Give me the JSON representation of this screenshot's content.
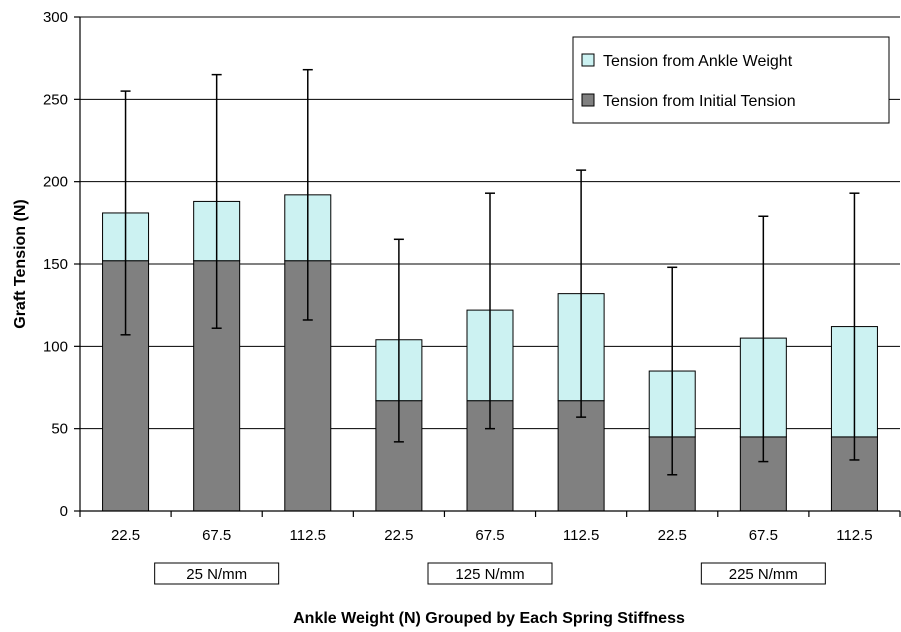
{
  "chart_data": {
    "type": "bar",
    "stacked": true,
    "title": "",
    "xlabel": "Ankle Weight (N) Grouped by Each Spring Stiffness",
    "ylabel": "Graft Tension (N)",
    "ylim": [
      0,
      300
    ],
    "yticks": [
      "0",
      "50",
      "100",
      "150",
      "200",
      "250",
      "300"
    ],
    "grid": true,
    "legend_position": "top-right",
    "categories": [
      "22.5",
      "67.5",
      "112.5",
      "22.5",
      "67.5",
      "112.5",
      "22.5",
      "67.5",
      "112.5"
    ],
    "groups": [
      {
        "label": "25 N/mm",
        "categories": [
          0,
          1,
          2
        ]
      },
      {
        "label": "125 N/mm",
        "categories": [
          3,
          4,
          5
        ]
      },
      {
        "label": "225 N/mm",
        "categories": [
          6,
          7,
          8
        ]
      }
    ],
    "series": [
      {
        "name": "Tension from Initial Tension",
        "color": "#808080",
        "values": [
          152,
          152,
          152,
          67,
          67,
          67,
          45,
          45,
          45
        ]
      },
      {
        "name": "Tension from Ankle Weight",
        "color": "#ccf2f2",
        "values": [
          29,
          36,
          40,
          37,
          55,
          65,
          40,
          60,
          67
        ]
      }
    ],
    "totals": [
      181,
      188,
      192,
      104,
      122,
      132,
      85,
      105,
      112
    ],
    "error_bars": {
      "upper": [
        255,
        265,
        268,
        165,
        193,
        207,
        148,
        179,
        193
      ],
      "lower": [
        107,
        111,
        116,
        42,
        50,
        57,
        22,
        30,
        31
      ]
    },
    "legend_order": [
      "Tension from Ankle Weight",
      "Tension from Initial Tension"
    ]
  },
  "colors": {
    "bar_bottom": "#808080",
    "bar_top": "#ccf2f2",
    "stroke": "#000000",
    "grid": "#000000",
    "background": "#ffffff"
  }
}
